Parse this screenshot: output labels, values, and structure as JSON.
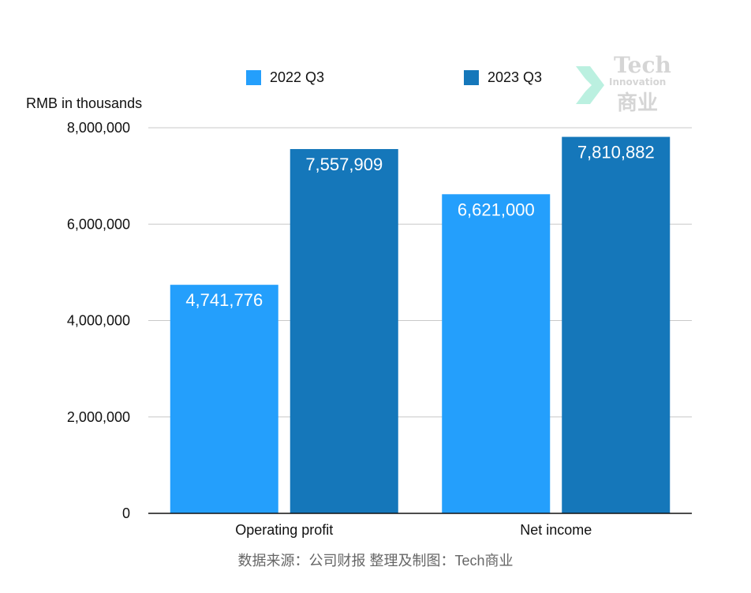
{
  "legend": [
    {
      "label": "2022 Q3",
      "color": "#249FFC"
    },
    {
      "label": "2023 Q3",
      "color": "#1577BA"
    }
  ],
  "y_unit_label": "RMB in thousands",
  "source_text": "数据来源：公司财报 整理及制图：Tech商业",
  "watermark": {
    "line1": "Tech",
    "line2": "Innovation",
    "line3": "商业",
    "icon": "arrow-logo-icon"
  },
  "chart_data": {
    "type": "bar",
    "categories": [
      "Operating profit",
      "Net income"
    ],
    "series": [
      {
        "name": "2022 Q3",
        "values": [
          4741776,
          6621000
        ],
        "color": "#249FFC"
      },
      {
        "name": "2023 Q3",
        "values": [
          7557909,
          7810882
        ],
        "color": "#1577BA"
      }
    ],
    "data_labels": [
      [
        "4,741,776",
        "6,621,000"
      ],
      [
        "7,557,909",
        "7,810,882"
      ]
    ],
    "xlabel": "",
    "ylabel": "RMB in thousands",
    "ylim": [
      0,
      8000000
    ],
    "yticks": [
      0,
      2000000,
      4000000,
      6000000,
      8000000
    ],
    "ytick_labels": [
      "0",
      "2,000,000",
      "4,000,000",
      "6,000,000",
      "8,000,000"
    ],
    "grid": true,
    "legend_position": "top"
  }
}
